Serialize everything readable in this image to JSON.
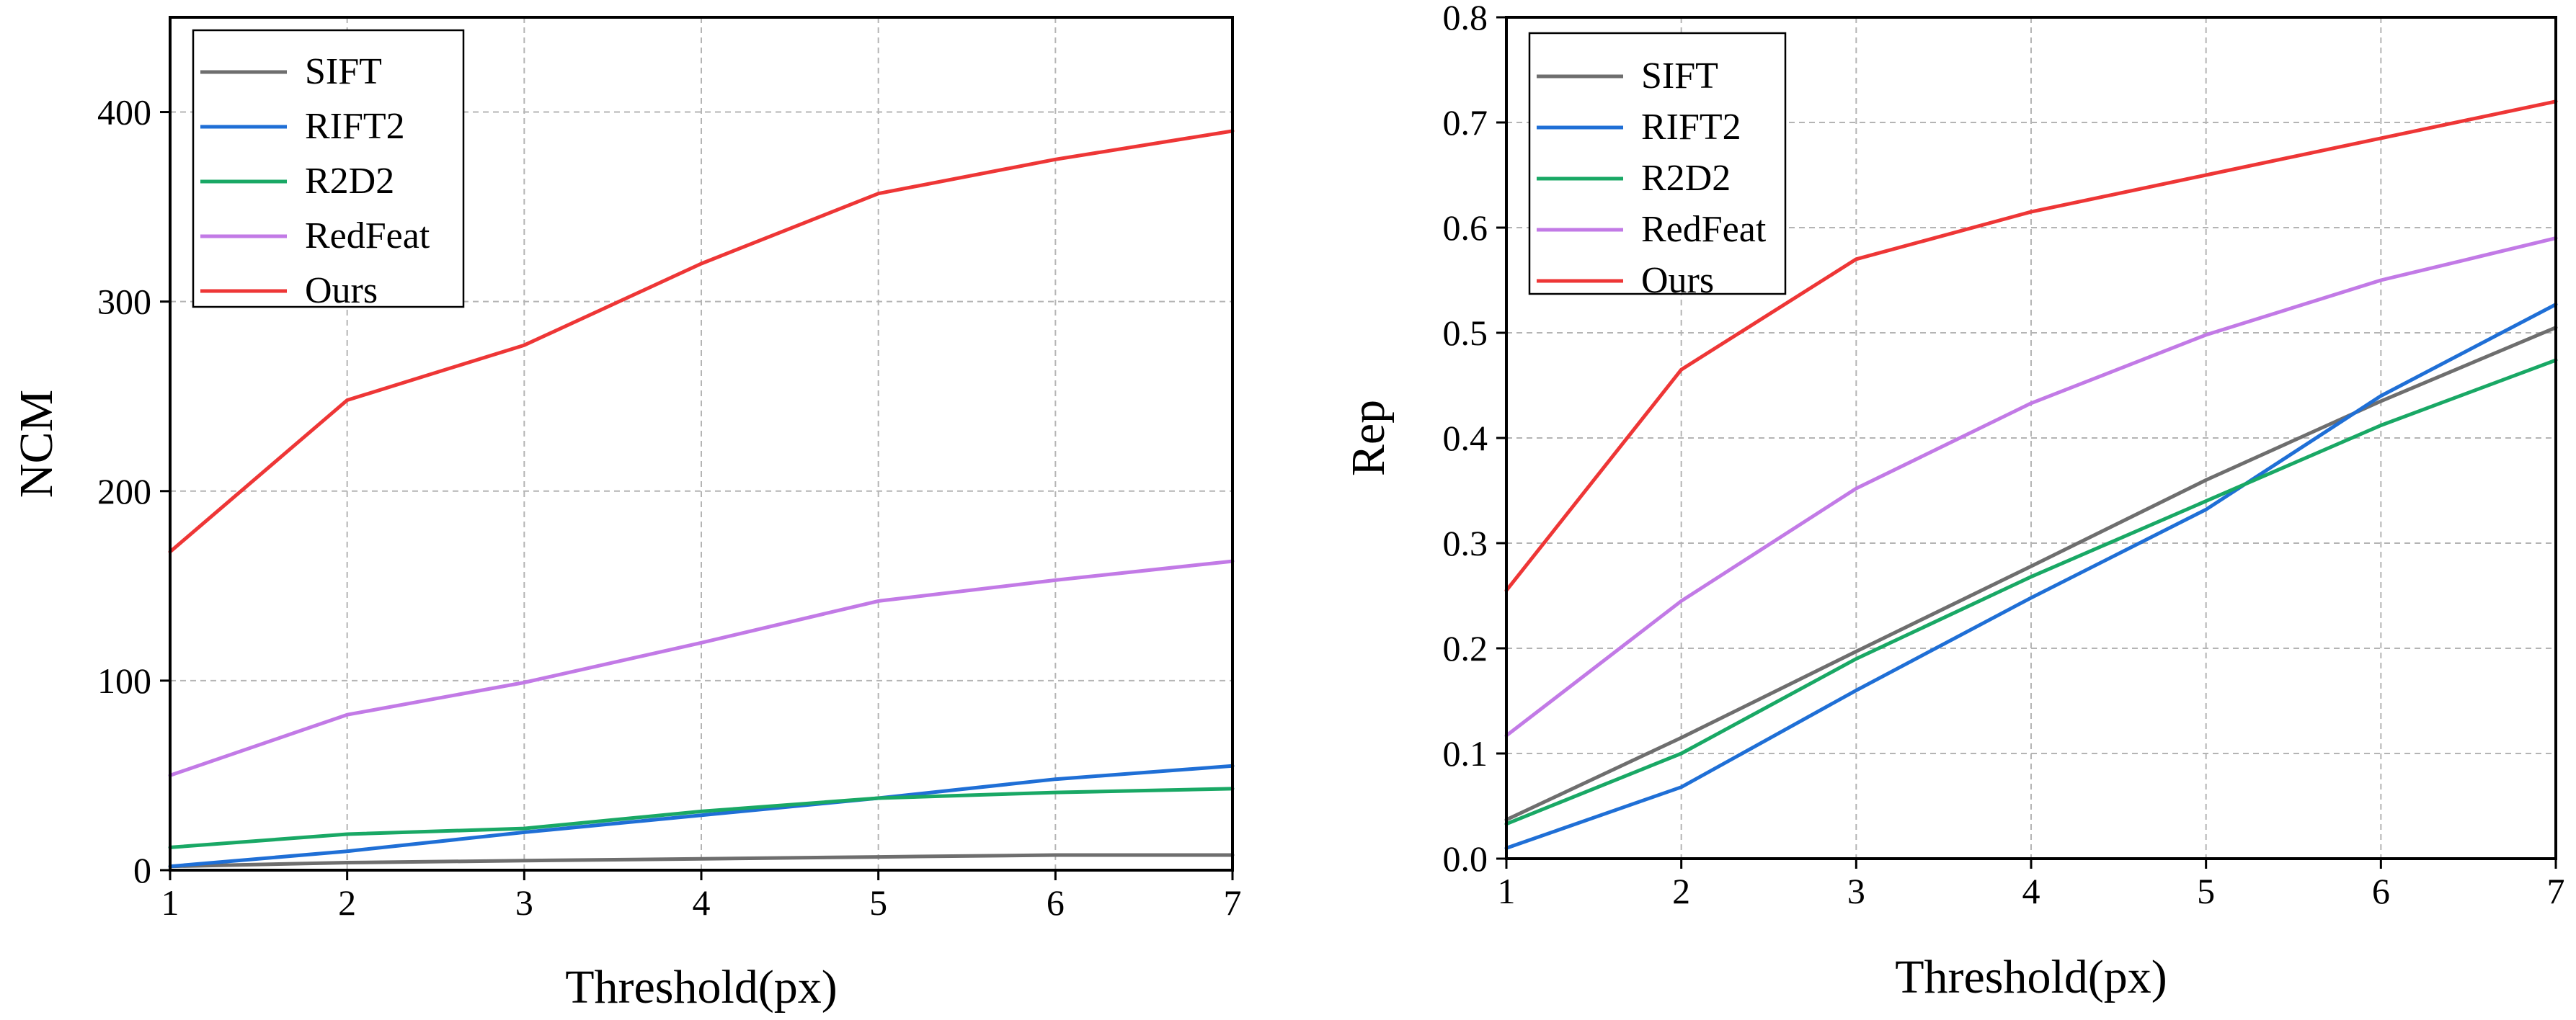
{
  "chart_data": [
    {
      "type": "line",
      "xlabel": "Threshold(px)",
      "ylabel": "NCM",
      "x": [
        1,
        2,
        3,
        4,
        5,
        6,
        7
      ],
      "xticks": [
        "1",
        "2",
        "3",
        "4",
        "5",
        "6",
        "7"
      ],
      "xlim": [
        1,
        7
      ],
      "ylim": [
        0,
        450
      ],
      "yticks": [
        "0",
        "100",
        "200",
        "300",
        "400"
      ],
      "ytick_values": [
        0,
        100,
        200,
        300,
        400
      ],
      "grid": true,
      "legend_position": "top-left",
      "series": [
        {
          "name": "SIFT",
          "color": "#6e6e6e",
          "values": [
            2,
            4,
            5,
            6,
            7,
            8,
            8
          ]
        },
        {
          "name": "RIFT2",
          "color": "#1f6fd6",
          "values": [
            2,
            10,
            20,
            29,
            38,
            48,
            55
          ]
        },
        {
          "name": "R2D2",
          "color": "#19a865",
          "values": [
            12,
            19,
            22,
            31,
            38,
            41,
            43
          ]
        },
        {
          "name": "RedFeat",
          "color": "#c27ae6",
          "values": [
            50,
            82,
            99,
            120,
            142,
            153,
            163
          ]
        },
        {
          "name": "Ours",
          "color": "#ee3636",
          "values": [
            168,
            248,
            277,
            320,
            357,
            375,
            390
          ]
        }
      ]
    },
    {
      "type": "line",
      "xlabel": "Threshold(px)",
      "ylabel": "Rep",
      "x": [
        1,
        2,
        3,
        4,
        5,
        6,
        7
      ],
      "xticks": [
        "1",
        "2",
        "3",
        "4",
        "5",
        "6",
        "7"
      ],
      "xlim": [
        1,
        7
      ],
      "ylim": [
        0,
        0.8
      ],
      "yticks": [
        "0.0",
        "0.1",
        "0.2",
        "0.3",
        "0.4",
        "0.5",
        "0.6",
        "0.7",
        "0.8"
      ],
      "ytick_values": [
        0,
        0.1,
        0.2,
        0.3,
        0.4,
        0.5,
        0.6,
        0.7,
        0.8
      ],
      "grid": true,
      "legend_position": "top-left",
      "series": [
        {
          "name": "SIFT",
          "color": "#6e6e6e",
          "values": [
            0.037,
            0.115,
            0.197,
            0.278,
            0.36,
            0.435,
            0.505
          ]
        },
        {
          "name": "RIFT2",
          "color": "#1f6fd6",
          "values": [
            0.01,
            0.068,
            0.16,
            0.248,
            0.332,
            0.44,
            0.527
          ]
        },
        {
          "name": "R2D2",
          "color": "#19a865",
          "values": [
            0.033,
            0.1,
            0.19,
            0.268,
            0.34,
            0.412,
            0.474
          ]
        },
        {
          "name": "RedFeat",
          "color": "#c27ae6",
          "values": [
            0.117,
            0.245,
            0.352,
            0.433,
            0.498,
            0.55,
            0.59
          ]
        },
        {
          "name": "Ours",
          "color": "#ee3636",
          "values": [
            0.255,
            0.465,
            0.57,
            0.615,
            0.65,
            0.685,
            0.72
          ]
        }
      ]
    }
  ]
}
